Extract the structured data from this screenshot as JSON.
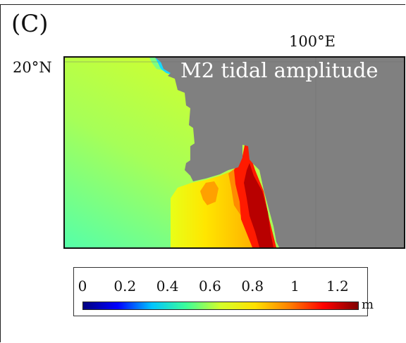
{
  "panel": {
    "label": "(C)",
    "map_title": "M2 tidal amplitude",
    "lon_label": "100°E",
    "lat_label": "20°N"
  },
  "colorbar": {
    "ticks": [
      "0",
      "0.2",
      "0.4",
      "0.6",
      "0.8",
      "1",
      "1.2"
    ],
    "tick_values": [
      0,
      0.2,
      0.4,
      0.6,
      0.8,
      1.0,
      1.2
    ],
    "range": [
      0,
      1.3
    ],
    "unit": "m",
    "colormap": "jet"
  },
  "colors": {
    "land": "#808080",
    "cmap_stops": [
      "#00007f",
      "#0000ff",
      "#00c4ff",
      "#3cff99",
      "#d4ff2a",
      "#ffe100",
      "#ff8000",
      "#ff0000",
      "#7f0000"
    ]
  }
}
